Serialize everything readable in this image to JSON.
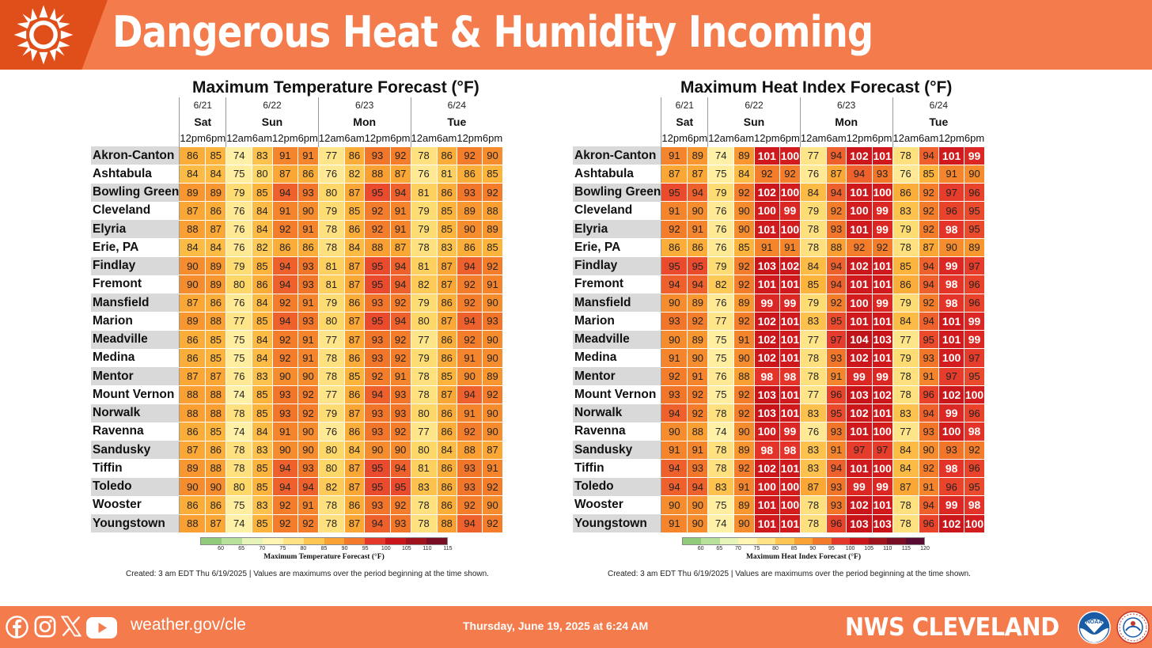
{
  "header": {
    "title": "Dangerous Heat & Humidity Incoming"
  },
  "chart_data": [
    {
      "type": "heatmap",
      "title": "Maximum Temperature Forecast (°F)",
      "days": [
        {
          "date": "6/21",
          "weekday": "Sat",
          "times": [
            "12pm",
            "6pm"
          ]
        },
        {
          "date": "6/22",
          "weekday": "Sun",
          "times": [
            "12am",
            "6am",
            "12pm",
            "6pm"
          ]
        },
        {
          "date": "6/23",
          "weekday": "Mon",
          "times": [
            "12am",
            "6am",
            "12pm",
            "6pm"
          ]
        },
        {
          "date": "6/24",
          "weekday": "Tue",
          "times": [
            "12am",
            "6am",
            "12pm",
            "6pm"
          ]
        }
      ],
      "rows": [
        {
          "name": "Akron-Canton",
          "values": [
            86,
            85,
            74,
            83,
            91,
            91,
            77,
            86,
            93,
            92,
            78,
            86,
            92,
            90
          ]
        },
        {
          "name": "Ashtabula",
          "values": [
            84,
            84,
            75,
            80,
            87,
            86,
            76,
            82,
            88,
            87,
            76,
            81,
            86,
            85
          ]
        },
        {
          "name": "Bowling Green",
          "values": [
            89,
            89,
            79,
            85,
            94,
            93,
            80,
            87,
            95,
            94,
            81,
            86,
            93,
            92
          ]
        },
        {
          "name": "Cleveland",
          "values": [
            87,
            86,
            76,
            84,
            91,
            90,
            79,
            85,
            92,
            91,
            79,
            85,
            89,
            88
          ]
        },
        {
          "name": "Elyria",
          "values": [
            88,
            87,
            76,
            84,
            92,
            91,
            78,
            86,
            92,
            91,
            79,
            85,
            90,
            89
          ]
        },
        {
          "name": "Erie, PA",
          "values": [
            84,
            84,
            76,
            82,
            86,
            86,
            78,
            84,
            88,
            87,
            78,
            83,
            86,
            85
          ]
        },
        {
          "name": "Findlay",
          "values": [
            90,
            89,
            79,
            85,
            94,
            93,
            81,
            87,
            95,
            94,
            81,
            87,
            94,
            92
          ]
        },
        {
          "name": "Fremont",
          "values": [
            90,
            89,
            80,
            86,
            94,
            93,
            81,
            87,
            95,
            94,
            82,
            87,
            92,
            91
          ]
        },
        {
          "name": "Mansfield",
          "values": [
            87,
            86,
            76,
            84,
            92,
            91,
            79,
            86,
            93,
            92,
            79,
            86,
            92,
            90
          ]
        },
        {
          "name": "Marion",
          "values": [
            89,
            88,
            77,
            85,
            94,
            93,
            80,
            87,
            95,
            94,
            80,
            87,
            94,
            93
          ]
        },
        {
          "name": "Meadville",
          "values": [
            86,
            85,
            75,
            84,
            92,
            91,
            77,
            87,
            93,
            92,
            77,
            86,
            92,
            90
          ]
        },
        {
          "name": "Medina",
          "values": [
            86,
            85,
            75,
            84,
            92,
            91,
            78,
            86,
            93,
            92,
            79,
            86,
            91,
            90
          ]
        },
        {
          "name": "Mentor",
          "values": [
            87,
            87,
            76,
            83,
            90,
            90,
            78,
            85,
            92,
            91,
            78,
            85,
            90,
            89
          ]
        },
        {
          "name": "Mount Vernon",
          "values": [
            88,
            88,
            74,
            85,
            93,
            92,
            77,
            86,
            94,
            93,
            78,
            87,
            94,
            92
          ]
        },
        {
          "name": "Norwalk",
          "values": [
            88,
            88,
            78,
            85,
            93,
            92,
            79,
            87,
            93,
            93,
            80,
            86,
            91,
            90
          ]
        },
        {
          "name": "Ravenna",
          "values": [
            86,
            85,
            74,
            84,
            91,
            90,
            76,
            86,
            93,
            92,
            77,
            86,
            92,
            90
          ]
        },
        {
          "name": "Sandusky",
          "values": [
            87,
            86,
            78,
            83,
            90,
            90,
            80,
            84,
            90,
            90,
            80,
            84,
            88,
            87
          ]
        },
        {
          "name": "Tiffin",
          "values": [
            89,
            88,
            78,
            85,
            94,
            93,
            80,
            87,
            95,
            94,
            81,
            86,
            93,
            91
          ]
        },
        {
          "name": "Toledo",
          "values": [
            90,
            90,
            80,
            85,
            94,
            94,
            82,
            87,
            95,
            95,
            83,
            86,
            93,
            92
          ]
        },
        {
          "name": "Wooster",
          "values": [
            86,
            86,
            75,
            83,
            92,
            91,
            78,
            86,
            93,
            92,
            78,
            86,
            92,
            90
          ]
        },
        {
          "name": "Youngstown",
          "values": [
            88,
            87,
            74,
            85,
            92,
            92,
            78,
            87,
            94,
            93,
            78,
            88,
            94,
            92
          ]
        }
      ],
      "legend": {
        "title": "Maximum Temperature Forecast (°F)",
        "ticks": [
          60,
          65,
          70,
          75,
          80,
          85,
          90,
          95,
          100,
          105,
          110,
          115
        ],
        "range": [
          55,
          115
        ]
      },
      "note": "Created: 3 am EDT Thu 6/19/2025  |  Values are maximums over the period beginning at the time shown."
    },
    {
      "type": "heatmap",
      "title": "Maximum Heat Index Forecast (°F)",
      "days": [
        {
          "date": "6/21",
          "weekday": "Sat",
          "times": [
            "12pm",
            "6pm"
          ]
        },
        {
          "date": "6/22",
          "weekday": "Sun",
          "times": [
            "12am",
            "6am",
            "12pm",
            "6pm"
          ]
        },
        {
          "date": "6/23",
          "weekday": "Mon",
          "times": [
            "12am",
            "6am",
            "12pm",
            "6pm"
          ]
        },
        {
          "date": "6/24",
          "weekday": "Tue",
          "times": [
            "12am",
            "6am",
            "12pm",
            "6pm"
          ]
        }
      ],
      "rows": [
        {
          "name": "Akron-Canton",
          "values": [
            91,
            89,
            74,
            89,
            101,
            100,
            77,
            94,
            102,
            101,
            78,
            94,
            101,
            99
          ]
        },
        {
          "name": "Ashtabula",
          "values": [
            87,
            87,
            75,
            84,
            92,
            92,
            76,
            87,
            94,
            93,
            76,
            85,
            91,
            90
          ]
        },
        {
          "name": "Bowling Green",
          "values": [
            95,
            94,
            79,
            92,
            102,
            100,
            84,
            94,
            101,
            100,
            86,
            92,
            97,
            96
          ]
        },
        {
          "name": "Cleveland",
          "values": [
            91,
            90,
            76,
            90,
            100,
            99,
            79,
            92,
            100,
            99,
            83,
            92,
            96,
            95
          ]
        },
        {
          "name": "Elyria",
          "values": [
            92,
            91,
            76,
            90,
            101,
            100,
            78,
            93,
            101,
            99,
            79,
            92,
            98,
            95
          ]
        },
        {
          "name": "Erie, PA",
          "values": [
            86,
            86,
            76,
            85,
            91,
            91,
            78,
            88,
            92,
            92,
            78,
            87,
            90,
            89
          ]
        },
        {
          "name": "Findlay",
          "values": [
            95,
            95,
            79,
            92,
            103,
            102,
            84,
            94,
            102,
            101,
            85,
            94,
            99,
            97
          ]
        },
        {
          "name": "Fremont",
          "values": [
            94,
            94,
            82,
            92,
            101,
            101,
            85,
            94,
            101,
            101,
            86,
            94,
            98,
            96
          ]
        },
        {
          "name": "Mansfield",
          "values": [
            90,
            89,
            76,
            89,
            99,
            99,
            79,
            92,
            100,
            99,
            79,
            92,
            98,
            96
          ]
        },
        {
          "name": "Marion",
          "values": [
            93,
            92,
            77,
            92,
            102,
            101,
            83,
            95,
            101,
            101,
            84,
            94,
            101,
            99
          ]
        },
        {
          "name": "Meadville",
          "values": [
            90,
            89,
            75,
            91,
            102,
            101,
            77,
            97,
            104,
            103,
            77,
            95,
            101,
            99
          ]
        },
        {
          "name": "Medina",
          "values": [
            91,
            90,
            75,
            90,
            102,
            101,
            78,
            93,
            102,
            101,
            79,
            93,
            100,
            97
          ]
        },
        {
          "name": "Mentor",
          "values": [
            92,
            91,
            76,
            88,
            98,
            98,
            78,
            91,
            99,
            99,
            78,
            91,
            97,
            95
          ]
        },
        {
          "name": "Mount Vernon",
          "values": [
            93,
            92,
            75,
            92,
            103,
            101,
            77,
            96,
            103,
            102,
            78,
            96,
            102,
            100
          ]
        },
        {
          "name": "Norwalk",
          "values": [
            94,
            92,
            78,
            92,
            103,
            101,
            83,
            95,
            102,
            101,
            83,
            94,
            99,
            96
          ]
        },
        {
          "name": "Ravenna",
          "values": [
            90,
            88,
            74,
            90,
            100,
            99,
            76,
            93,
            101,
            100,
            77,
            93,
            100,
            98
          ]
        },
        {
          "name": "Sandusky",
          "values": [
            91,
            91,
            78,
            89,
            98,
            98,
            83,
            91,
            97,
            97,
            84,
            90,
            93,
            92
          ]
        },
        {
          "name": "Tiffin",
          "values": [
            94,
            93,
            78,
            92,
            102,
            101,
            83,
            94,
            101,
            100,
            84,
            92,
            98,
            96
          ]
        },
        {
          "name": "Toledo",
          "values": [
            94,
            94,
            83,
            91,
            100,
            100,
            87,
            93,
            99,
            99,
            87,
            91,
            96,
            95
          ]
        },
        {
          "name": "Wooster",
          "values": [
            90,
            90,
            75,
            89,
            101,
            100,
            78,
            93,
            102,
            101,
            78,
            94,
            99,
            98
          ]
        },
        {
          "name": "Youngstown",
          "values": [
            91,
            90,
            74,
            90,
            101,
            101,
            78,
            96,
            103,
            103,
            78,
            96,
            102,
            100
          ]
        }
      ],
      "legend": {
        "title": "Maximum Heat Index Forecast (°F)",
        "ticks": [
          60,
          65,
          70,
          75,
          80,
          85,
          90,
          95,
          100,
          105,
          110,
          115,
          120
        ],
        "range": [
          55,
          120
        ]
      },
      "note": "Created: 3 am EDT Thu 6/19/2025  |  Values are maximums over the period beginning at the time shown."
    }
  ],
  "footer": {
    "website": "weather.gov/cle",
    "timestamp": "Thursday, June 19, 2025 at 6:24 AM",
    "office": "NWS CLEVELAND",
    "social_icons": [
      "facebook-icon",
      "instagram-icon",
      "x-icon",
      "youtube-icon"
    ],
    "logos": [
      "noaa-logo",
      "nws-logo"
    ]
  },
  "colors": {
    "header_bg": "#f47b4c",
    "header_icon_bg": "#e04f1a",
    "footer_bg": "#f47b4c",
    "row_name_gray": "#d9d9d9"
  }
}
